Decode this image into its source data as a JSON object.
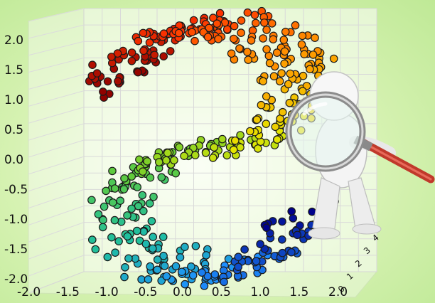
{
  "chart_data": {
    "type": "scatter",
    "title": "",
    "xlabel": "",
    "ylabel": "",
    "zlabel": "",
    "grid": true,
    "x_ticks": [
      "-2.0",
      "-1.5",
      "-1.0",
      "-0.5",
      "0.0",
      "0.5",
      "1.0",
      "1.5",
      "2.0"
    ],
    "y_ticks": [
      "2.0",
      "1.5",
      "1.0",
      "0.5",
      "0.0",
      "-0.5",
      "-1.0",
      "-1.5",
      "-2.0"
    ],
    "z_ticks": [
      "0",
      "1",
      "2",
      "3",
      "4"
    ],
    "xlim": [
      -2.0,
      2.0
    ],
    "ylim": [
      -2.0,
      2.0
    ],
    "zlim": [
      0,
      4
    ],
    "colormap": [
      "#8b0000",
      "#ff3300",
      "#ff9900",
      "#e6e600",
      "#66cc33",
      "#1fbf9f",
      "#1e90ff",
      "#00008b"
    ],
    "series": [
      {
        "description_free": true,
        "x": [
          0.0,
          0.5,
          0.9,
          1.0,
          0.9,
          0.5,
          0.0,
          -0.5,
          -0.9,
          -1.0,
          -0.9,
          -0.5,
          0.0,
          0.5,
          0.9,
          1.0,
          0.9,
          0.5,
          0.0,
          -0.5,
          -0.9,
          -1.0,
          -0.9,
          -0.5
        ],
        "y": [
          1.9,
          1.75,
          1.45,
          1.05,
          0.7,
          0.5,
          0.4,
          0.3,
          0.1,
          -0.2,
          -0.6,
          -0.9,
          -1.0,
          -1.05,
          -1.2,
          -1.5,
          -1.85,
          -2.0,
          -1.95,
          -1.8,
          -1.55,
          -1.2,
          -0.95,
          -0.85
        ]
      }
    ]
  },
  "illustration": {
    "figure_icon": "magnifier-person-icon"
  }
}
